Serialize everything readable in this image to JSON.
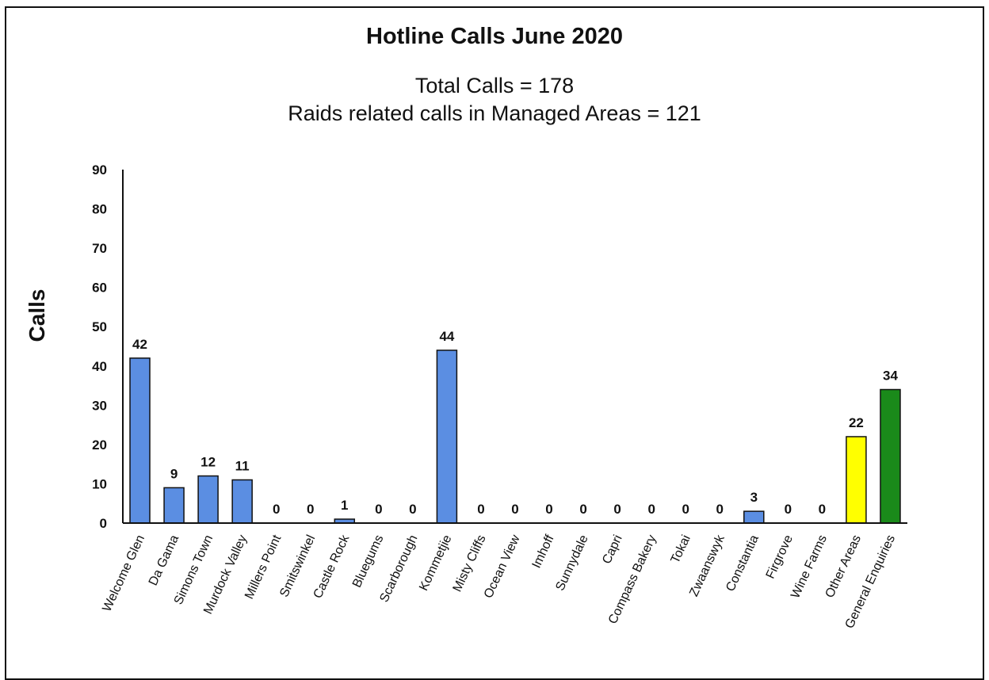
{
  "chart_data": {
    "type": "bar",
    "title": "Hotline Calls June 2020",
    "subtitle_lines": [
      "Total Calls = 178",
      "Raids related calls in Managed Areas = 121"
    ],
    "ylabel": "Calls",
    "xlabel": "",
    "ylim": [
      0,
      90
    ],
    "yticks": [
      0,
      10,
      20,
      30,
      40,
      50,
      60,
      70,
      80,
      90
    ],
    "grid": false,
    "legend": "none",
    "categories": [
      "Welcome Glen",
      "Da Gama",
      "Simons Town",
      "Murdock Valley",
      "Millers Point",
      "Smitswinkel",
      "Castle Rock",
      "Bluegums",
      "Scarborough",
      "Kommetjie",
      "Misty Cliffs",
      "Ocean View",
      "Imhoff",
      "Sunnydale",
      "Capri",
      "Compass Bakery",
      "Tokai",
      "Zwaanswyk",
      "Constantia",
      "Firgrove",
      "Wine Farms",
      "Other Areas",
      "General Enquiries"
    ],
    "values": [
      42,
      9,
      12,
      11,
      0,
      0,
      1,
      0,
      0,
      44,
      0,
      0,
      0,
      0,
      0,
      0,
      0,
      0,
      3,
      0,
      0,
      22,
      34
    ],
    "bar_colors": [
      "#5b8ee2",
      "#5b8ee2",
      "#5b8ee2",
      "#5b8ee2",
      "#5b8ee2",
      "#5b8ee2",
      "#5b8ee2",
      "#5b8ee2",
      "#5b8ee2",
      "#5b8ee2",
      "#5b8ee2",
      "#5b8ee2",
      "#5b8ee2",
      "#5b8ee2",
      "#5b8ee2",
      "#5b8ee2",
      "#5b8ee2",
      "#5b8ee2",
      "#5b8ee2",
      "#5b8ee2",
      "#5b8ee2",
      "#ffff00",
      "#1a8a1a"
    ]
  }
}
